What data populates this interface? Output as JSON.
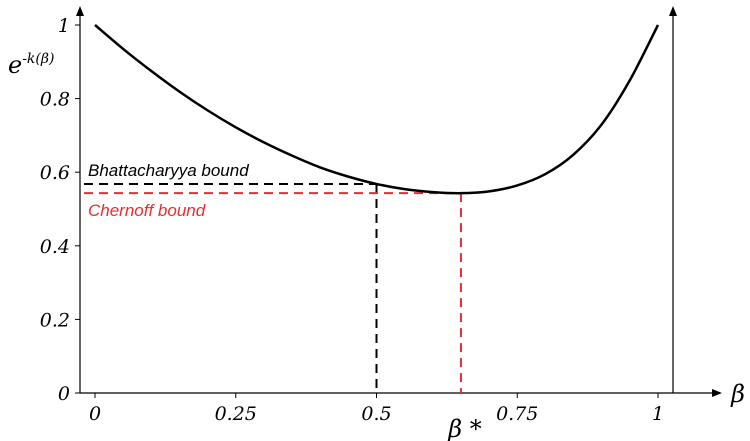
{
  "chart_data": {
    "type": "line",
    "title": "",
    "xlabel": "β",
    "ylabel_base": "e",
    "ylabel_exponent": "-k(β)",
    "xlim": [
      0,
      1
    ],
    "ylim": [
      0,
      1
    ],
    "x_ticks": [
      {
        "value": 0,
        "label": "0"
      },
      {
        "value": 0.25,
        "label": "0.25"
      },
      {
        "value": 0.5,
        "label": "0.5"
      },
      {
        "value": 0.75,
        "label": "0.75"
      },
      {
        "value": 1,
        "label": "1"
      }
    ],
    "y_ticks": [
      {
        "value": 0,
        "label": "0"
      },
      {
        "value": 0.2,
        "label": "0.2"
      },
      {
        "value": 0.4,
        "label": "0.4"
      },
      {
        "value": 0.6,
        "label": "0.6"
      },
      {
        "value": 0.8,
        "label": "0.8"
      },
      {
        "value": 1,
        "label": "1"
      }
    ],
    "special_x_label": {
      "value": 0.65,
      "label": "β *"
    },
    "series": [
      {
        "color": "#000000",
        "x": [
          0,
          0.05,
          0.1,
          0.15,
          0.2,
          0.25,
          0.3,
          0.35,
          0.4,
          0.45,
          0.5,
          0.55,
          0.6,
          0.65,
          0.7,
          0.75,
          0.8,
          0.85,
          0.9,
          0.95,
          1.0
        ],
        "y": [
          1.0,
          0.935,
          0.875,
          0.819,
          0.768,
          0.722,
          0.681,
          0.645,
          0.613,
          0.588,
          0.568,
          0.554,
          0.546,
          0.543,
          0.548,
          0.564,
          0.595,
          0.648,
          0.73,
          0.85,
          1.0
        ]
      }
    ],
    "annotations": [
      {
        "text": "Bhattacharyya bound",
        "color": "#000000",
        "x_at": 0.5,
        "y_level": 0.568
      },
      {
        "text": "Chernoff bound",
        "color": "#e03030",
        "x_at": 0.65,
        "y_level": 0.543
      }
    ]
  }
}
